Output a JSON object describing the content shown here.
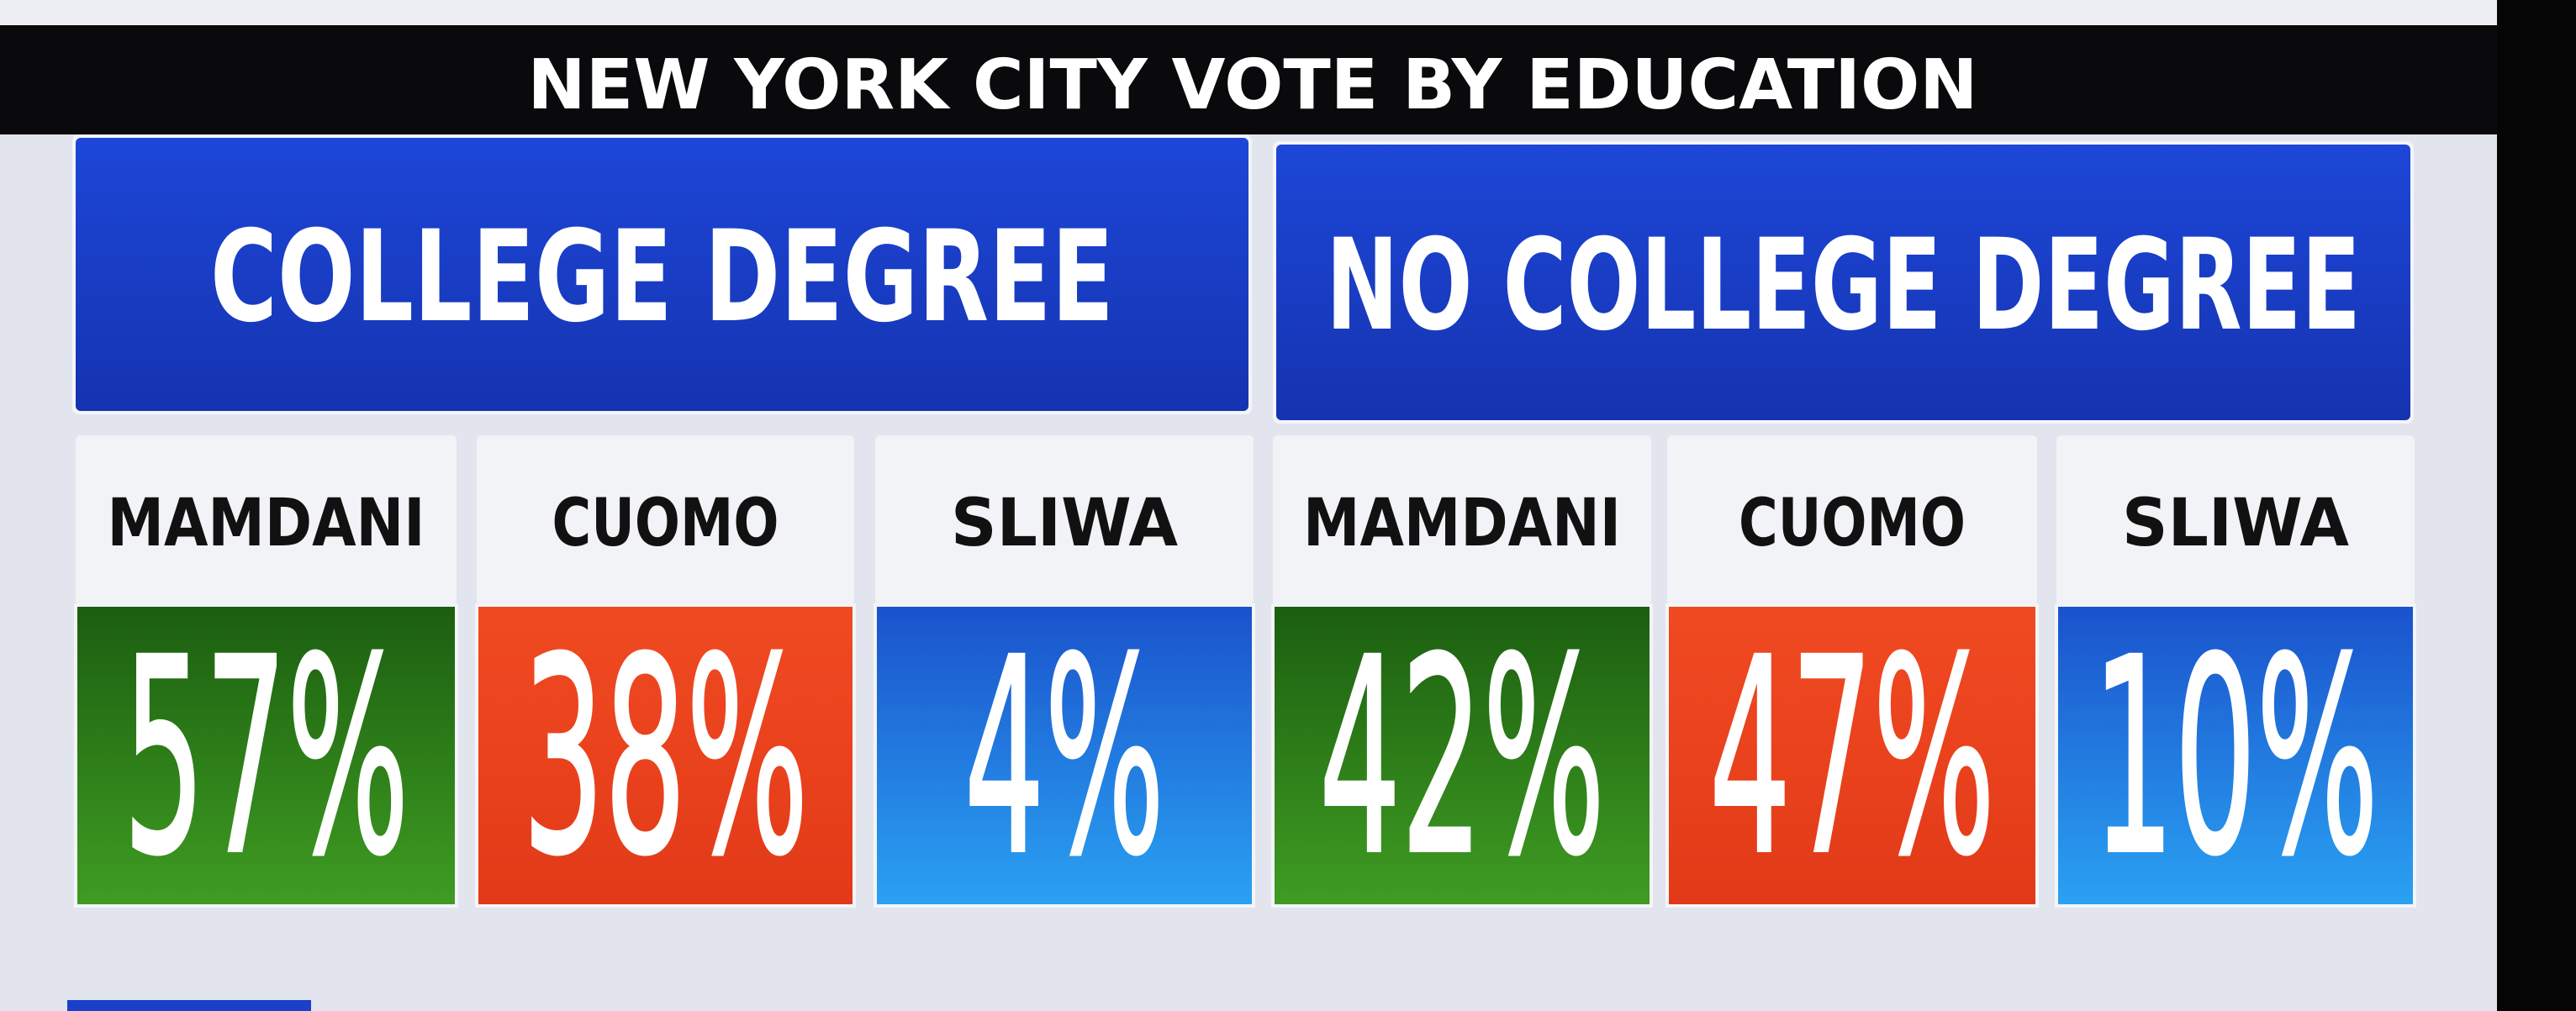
{
  "title": "NEW YORK CITY VOTE BY EDUCATION",
  "groups": [
    {
      "label": "COLLEGE DEGREE",
      "candidates": [
        {
          "name": "MAMDANI",
          "value": "57%"
        },
        {
          "name": "CUOMO",
          "value": "38%"
        },
        {
          "name": "SLIWA",
          "value": "4%"
        }
      ]
    },
    {
      "label": "NO COLLEGE DEGREE",
      "candidates": [
        {
          "name": "MAMDANI",
          "value": "42%"
        },
        {
          "name": "CUOMO",
          "value": "47%"
        },
        {
          "name": "SLIWA",
          "value": "10%"
        }
      ]
    }
  ]
}
